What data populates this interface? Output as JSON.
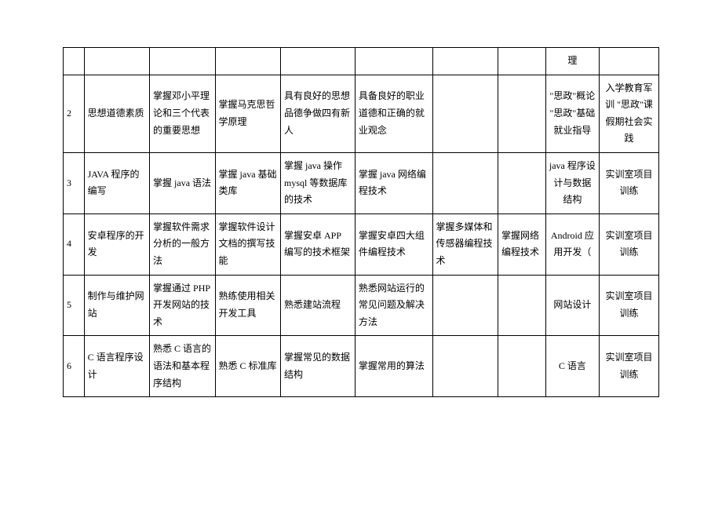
{
  "table": {
    "rows": [
      {
        "id": "",
        "c1": "",
        "c2": "",
        "c3": "",
        "c4": "",
        "c5": "",
        "c6": "",
        "c7": "",
        "c8": "理",
        "c9": ""
      },
      {
        "id": "2",
        "c1": "思想道德素质",
        "c2": "掌握邓小平理论和三个代表的重要思想",
        "c3": "掌握马克思哲学原理",
        "c4": "具有良好的思想品德争做四有新人",
        "c5": "具备良好的职业道德和正确的就业观念",
        "c6": "",
        "c7": "",
        "c8": "\"思政\"概论 \"思政\"基础就业指导",
        "c9": "入学教育军训 \"思政\"课假期社会实践"
      },
      {
        "id": "3",
        "c1": "JAVA 程序的编写",
        "c2": "掌握 java 语法",
        "c3": "掌握 java 基础类库",
        "c4": "掌握 java 操作 mysql 等数据库的技术",
        "c5": "掌握 java 网络编程技术",
        "c6": "",
        "c7": "",
        "c8": "java 程序设计与数据结构",
        "c9": "实训室项目训练"
      },
      {
        "id": "4",
        "c1": "安卓程序的开发",
        "c2": "掌握软件需求分析的一般方法",
        "c3": "掌握软件设计文档的撰写技能",
        "c4": "掌握安卓 APP 编写的技术框架",
        "c5": "掌握安卓四大组件编程技术",
        "c6": "掌握多媒体和传感器编程技术",
        "c7": "掌握网络编程技术",
        "c8": "Android 应用开发（",
        "c9": "实训室项目训练"
      },
      {
        "id": "5",
        "c1": "制作与维护网站",
        "c2": "掌握通过 PHP 开发网站的技术",
        "c3": "熟练使用相关开发工具",
        "c4": "熟悉建站流程",
        "c5": "熟悉网站运行的常见问题及解决方法",
        "c6": "",
        "c7": "",
        "c8": "网站设计",
        "c9": "实训室项目训练"
      },
      {
        "id": "6",
        "c1": "C 语言程序设计",
        "c2": "熟悉 C 语言的语法和基本程序结构",
        "c3": "熟悉 C 标准库",
        "c4": "掌握常见的数据结构",
        "c5": "掌握常用的算法",
        "c6": "",
        "c7": "",
        "c8": "C 语言",
        "c9": "实训室项目训练"
      }
    ]
  },
  "styling": {
    "border_color": "#000000",
    "background_color": "#ffffff",
    "text_color": "#000000",
    "font_size": 12,
    "line_height": 1.8,
    "font_family": "SimSun"
  }
}
